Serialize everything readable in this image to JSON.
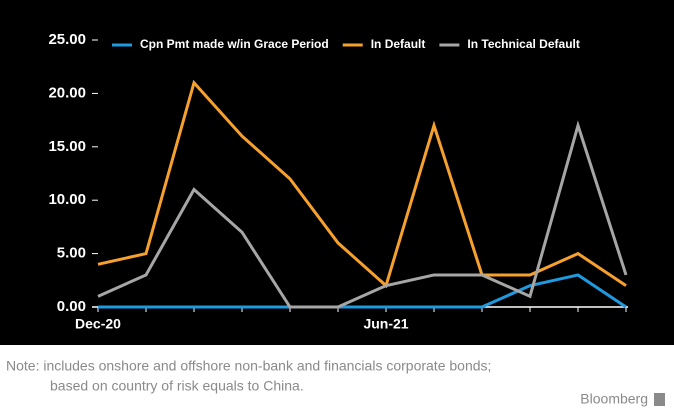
{
  "chart_data": {
    "type": "line",
    "categories": [
      "Dec-20",
      null,
      null,
      null,
      null,
      null,
      "Jun-21",
      null,
      null,
      null,
      null,
      null
    ],
    "series": [
      {
        "name": "Cpn Pmt made w/in Grace Period",
        "color": "#1e9ae0",
        "values": [
          0,
          0,
          0,
          0,
          0,
          0,
          0,
          0,
          0,
          2,
          3,
          0
        ]
      },
      {
        "name": "In Default",
        "color": "#f6a02d",
        "values": [
          4,
          5,
          21,
          16,
          12,
          6,
          2,
          17,
          3,
          3,
          5,
          2
        ]
      },
      {
        "name": "In Technical Default",
        "color": "#a6a6a6",
        "values": [
          1,
          3,
          11,
          7,
          0,
          0,
          2,
          3,
          3,
          1,
          17,
          3
        ]
      }
    ],
    "ylim": [
      0,
      25
    ],
    "yticks": [
      {
        "value": 0,
        "label": "0.00"
      },
      {
        "value": 5,
        "label": "5.00"
      },
      {
        "value": 10,
        "label": "10.00"
      },
      {
        "value": 15,
        "label": "15.00"
      },
      {
        "value": 20,
        "label": "20.00"
      },
      {
        "value": 25,
        "label": "25.00"
      }
    ],
    "legend": "top",
    "note": [
      "Note: includes onshore and offshore non-bank and financials corporate bonds;",
      "based on country of risk equals to China."
    ],
    "source": "Bloomberg"
  }
}
